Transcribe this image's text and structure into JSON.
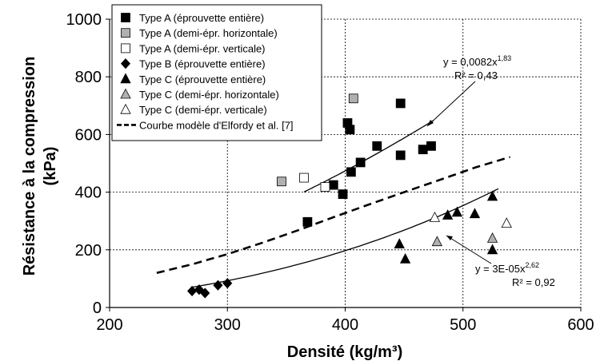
{
  "chart_data": {
    "type": "scatter",
    "xlabel": "Densité (kg/m³)",
    "ylabel_line1": "Résistance à la compression",
    "ylabel_line2": "(kPa)",
    "xlim": [
      200,
      600
    ],
    "ylim": [
      0,
      1000
    ],
    "x_ticks": [
      200,
      300,
      400,
      500,
      600
    ],
    "y_ticks": [
      0,
      200,
      400,
      600,
      800,
      1000
    ],
    "grid": "dashed",
    "legend_position": "top-left",
    "series": [
      {
        "name": "Type A (éprouvette entière)",
        "marker": "square",
        "fill": "#000000",
        "stroke": "#000000",
        "points": [
          [
            368,
            297
          ],
          [
            390,
            425
          ],
          [
            398,
            393
          ],
          [
            402,
            640
          ],
          [
            404,
            617
          ],
          [
            405,
            470
          ],
          [
            413,
            503
          ],
          [
            427,
            560
          ],
          [
            447,
            708
          ],
          [
            447,
            528
          ],
          [
            466,
            548
          ],
          [
            473,
            560
          ]
        ]
      },
      {
        "name": "Type A (demi-épr. horizontale)",
        "marker": "square",
        "fill": "#b0b0b0",
        "stroke": "#000000",
        "points": [
          [
            346,
            437
          ],
          [
            407,
            725
          ]
        ]
      },
      {
        "name": "Type A (demi-épr. verticale)",
        "marker": "square",
        "fill": "#ffffff",
        "stroke": "#000000",
        "points": [
          [
            365,
            450
          ],
          [
            383,
            418
          ]
        ]
      },
      {
        "name": "Type B (éprouvette entière)",
        "marker": "diamond",
        "fill": "#000000",
        "stroke": "#000000",
        "points": [
          [
            270,
            57
          ],
          [
            276,
            62
          ],
          [
            281,
            50
          ],
          [
            292,
            77
          ],
          [
            300,
            84
          ]
        ]
      },
      {
        "name": "Type C (éprouvette entière)",
        "marker": "triangle",
        "fill": "#000000",
        "stroke": "#000000",
        "points": [
          [
            446,
            220
          ],
          [
            451,
            168
          ],
          [
            487,
            320
          ],
          [
            495,
            330
          ],
          [
            510,
            325
          ],
          [
            525,
            385
          ],
          [
            525,
            200
          ]
        ]
      },
      {
        "name": "Type C (demi-épr. horizontale)",
        "marker": "triangle",
        "fill": "#b0b0b0",
        "stroke": "#000000",
        "points": [
          [
            478,
            228
          ],
          [
            525,
            240
          ]
        ]
      },
      {
        "name": "Type C (demi-épr. verticale)",
        "marker": "triangle",
        "fill": "#ffffff",
        "stroke": "#000000",
        "points": [
          [
            476,
            312
          ],
          [
            537,
            292
          ]
        ]
      }
    ],
    "model_curve": {
      "name": "Courbe modèle d'Elfordy et al. [7]",
      "style": "dashed",
      "points": [
        [
          240,
          120
        ],
        [
          270,
          150
        ],
        [
          300,
          185
        ],
        [
          330,
          225
        ],
        [
          360,
          268
        ],
        [
          390,
          313
        ],
        [
          420,
          357
        ],
        [
          450,
          400
        ],
        [
          480,
          442
        ],
        [
          510,
          485
        ],
        [
          540,
          522
        ]
      ]
    },
    "fits": [
      {
        "label_eq": "y = 0,0082x",
        "label_exp": "1,83",
        "label_r2": "R² = 0,43",
        "coef": 0.0082,
        "power": 1.83,
        "x_range": [
          365,
          475
        ]
      },
      {
        "label_eq": "y = 3E-05x",
        "label_exp": "2,62",
        "label_r2": "R² = 0,92",
        "coef": 3e-05,
        "power": 2.62,
        "x_range": [
          270,
          530
        ]
      }
    ]
  }
}
